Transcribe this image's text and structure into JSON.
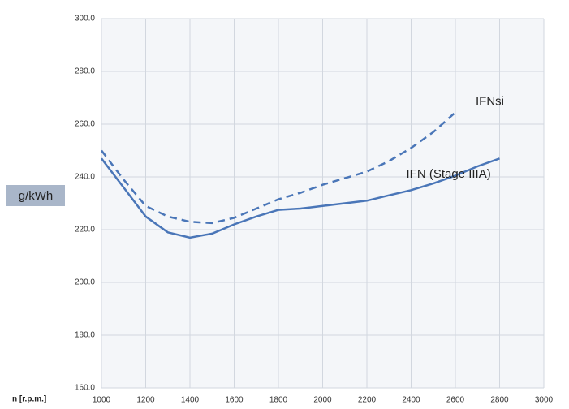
{
  "chart_data": {
    "type": "line",
    "y_label": "g/kWh",
    "x_label": "n [r.p.m.]",
    "xlim": [
      1000,
      3000
    ],
    "xticks": [
      1000,
      1200,
      1400,
      1600,
      1800,
      2000,
      2200,
      2400,
      2600,
      2800,
      3000
    ],
    "ylim": [
      160,
      300
    ],
    "yticks": [
      {
        "value": 160,
        "label": "160.0"
      },
      {
        "value": 180,
        "label": "180.0"
      },
      {
        "value": 200,
        "label": "200.0"
      },
      {
        "value": 220,
        "label": "220.0"
      },
      {
        "value": 240,
        "label": "240.0"
      },
      {
        "value": 260,
        "label": "260.0"
      },
      {
        "value": 280,
        "label": "280.0"
      },
      {
        "value": 300,
        "label": "300.0"
      }
    ],
    "grid": true,
    "series": [
      {
        "name": "IFNsi",
        "color": "#4a76b8",
        "dashed": true,
        "x": [
          1000,
          1100,
          1200,
          1300,
          1400,
          1500,
          1600,
          1700,
          1800,
          1900,
          2000,
          2100,
          2200,
          2300,
          2400,
          2500,
          2600
        ],
        "values": [
          250,
          239,
          229,
          225,
          223,
          222.5,
          224.5,
          228,
          231.5,
          234,
          237,
          239.5,
          242,
          246,
          251,
          257,
          264.5
        ]
      },
      {
        "name": "IFN (Stage IIIA)",
        "color": "#4a76b8",
        "dashed": false,
        "x": [
          1000,
          1100,
          1200,
          1300,
          1400,
          1500,
          1600,
          1700,
          1800,
          1900,
          2000,
          2100,
          2200,
          2300,
          2400,
          2500,
          2600,
          2700,
          2800
        ],
        "values": [
          247,
          236,
          225,
          219,
          217,
          218.5,
          222,
          225,
          227.5,
          228,
          229,
          230,
          231,
          233,
          235,
          237.5,
          240.5,
          244,
          247
        ]
      }
    ]
  }
}
